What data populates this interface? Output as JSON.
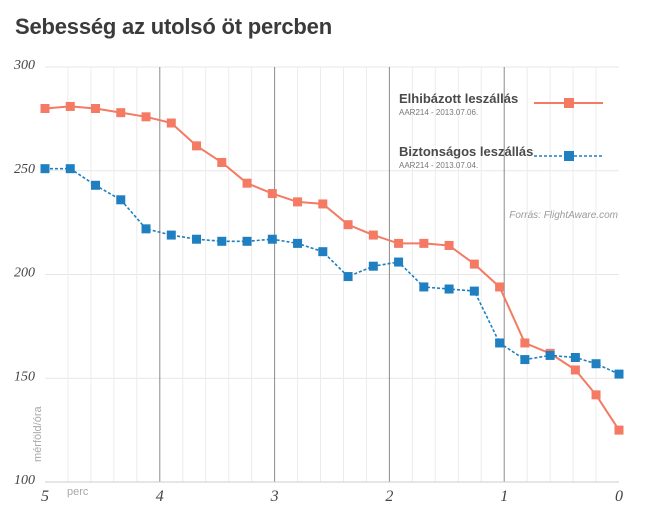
{
  "chart_data": {
    "type": "line",
    "title": "Sebesség az utolsó öt percben",
    "ylabel": "mérföld/óra",
    "xlabel": "perc",
    "ylim": [
      100,
      300
    ],
    "y_ticks": [
      300,
      250,
      200,
      150,
      100
    ],
    "xlim": [
      5,
      0
    ],
    "x_ticks": [
      5,
      4,
      3,
      2,
      1,
      0
    ],
    "grid": "vertical",
    "legend_position": "top-right",
    "source": "Forrás: FlightAware.com",
    "x": [
      5.0,
      4.78,
      4.56,
      4.34,
      4.12,
      3.9,
      3.68,
      3.46,
      3.24,
      3.02,
      2.8,
      2.58,
      2.36,
      2.14,
      1.92,
      1.7,
      1.48,
      1.26,
      1.04,
      0.82,
      0.6,
      0.38,
      0.2,
      0.0
    ],
    "series": [
      {
        "name": "Elhibázott leszállás",
        "subtitle": "AAR214 - 2013.07.06.",
        "color": "#f47a63",
        "style": "solid",
        "values": [
          280,
          281,
          280,
          278,
          276,
          273,
          262,
          254,
          244,
          239,
          235,
          234,
          224,
          219,
          215,
          215,
          214,
          205,
          194,
          167,
          162,
          154,
          142,
          125
        ]
      },
      {
        "name": "Biztonságos leszállás",
        "subtitle": "AAR214 - 2013.07.04.",
        "color": "#1f7fc1",
        "style": "dotted",
        "values": [
          251,
          251,
          243,
          236,
          222,
          219,
          217,
          216,
          216,
          217,
          215,
          211,
          199,
          204,
          206,
          194,
          193,
          192,
          167,
          159,
          161,
          160,
          157,
          152
        ]
      }
    ]
  }
}
